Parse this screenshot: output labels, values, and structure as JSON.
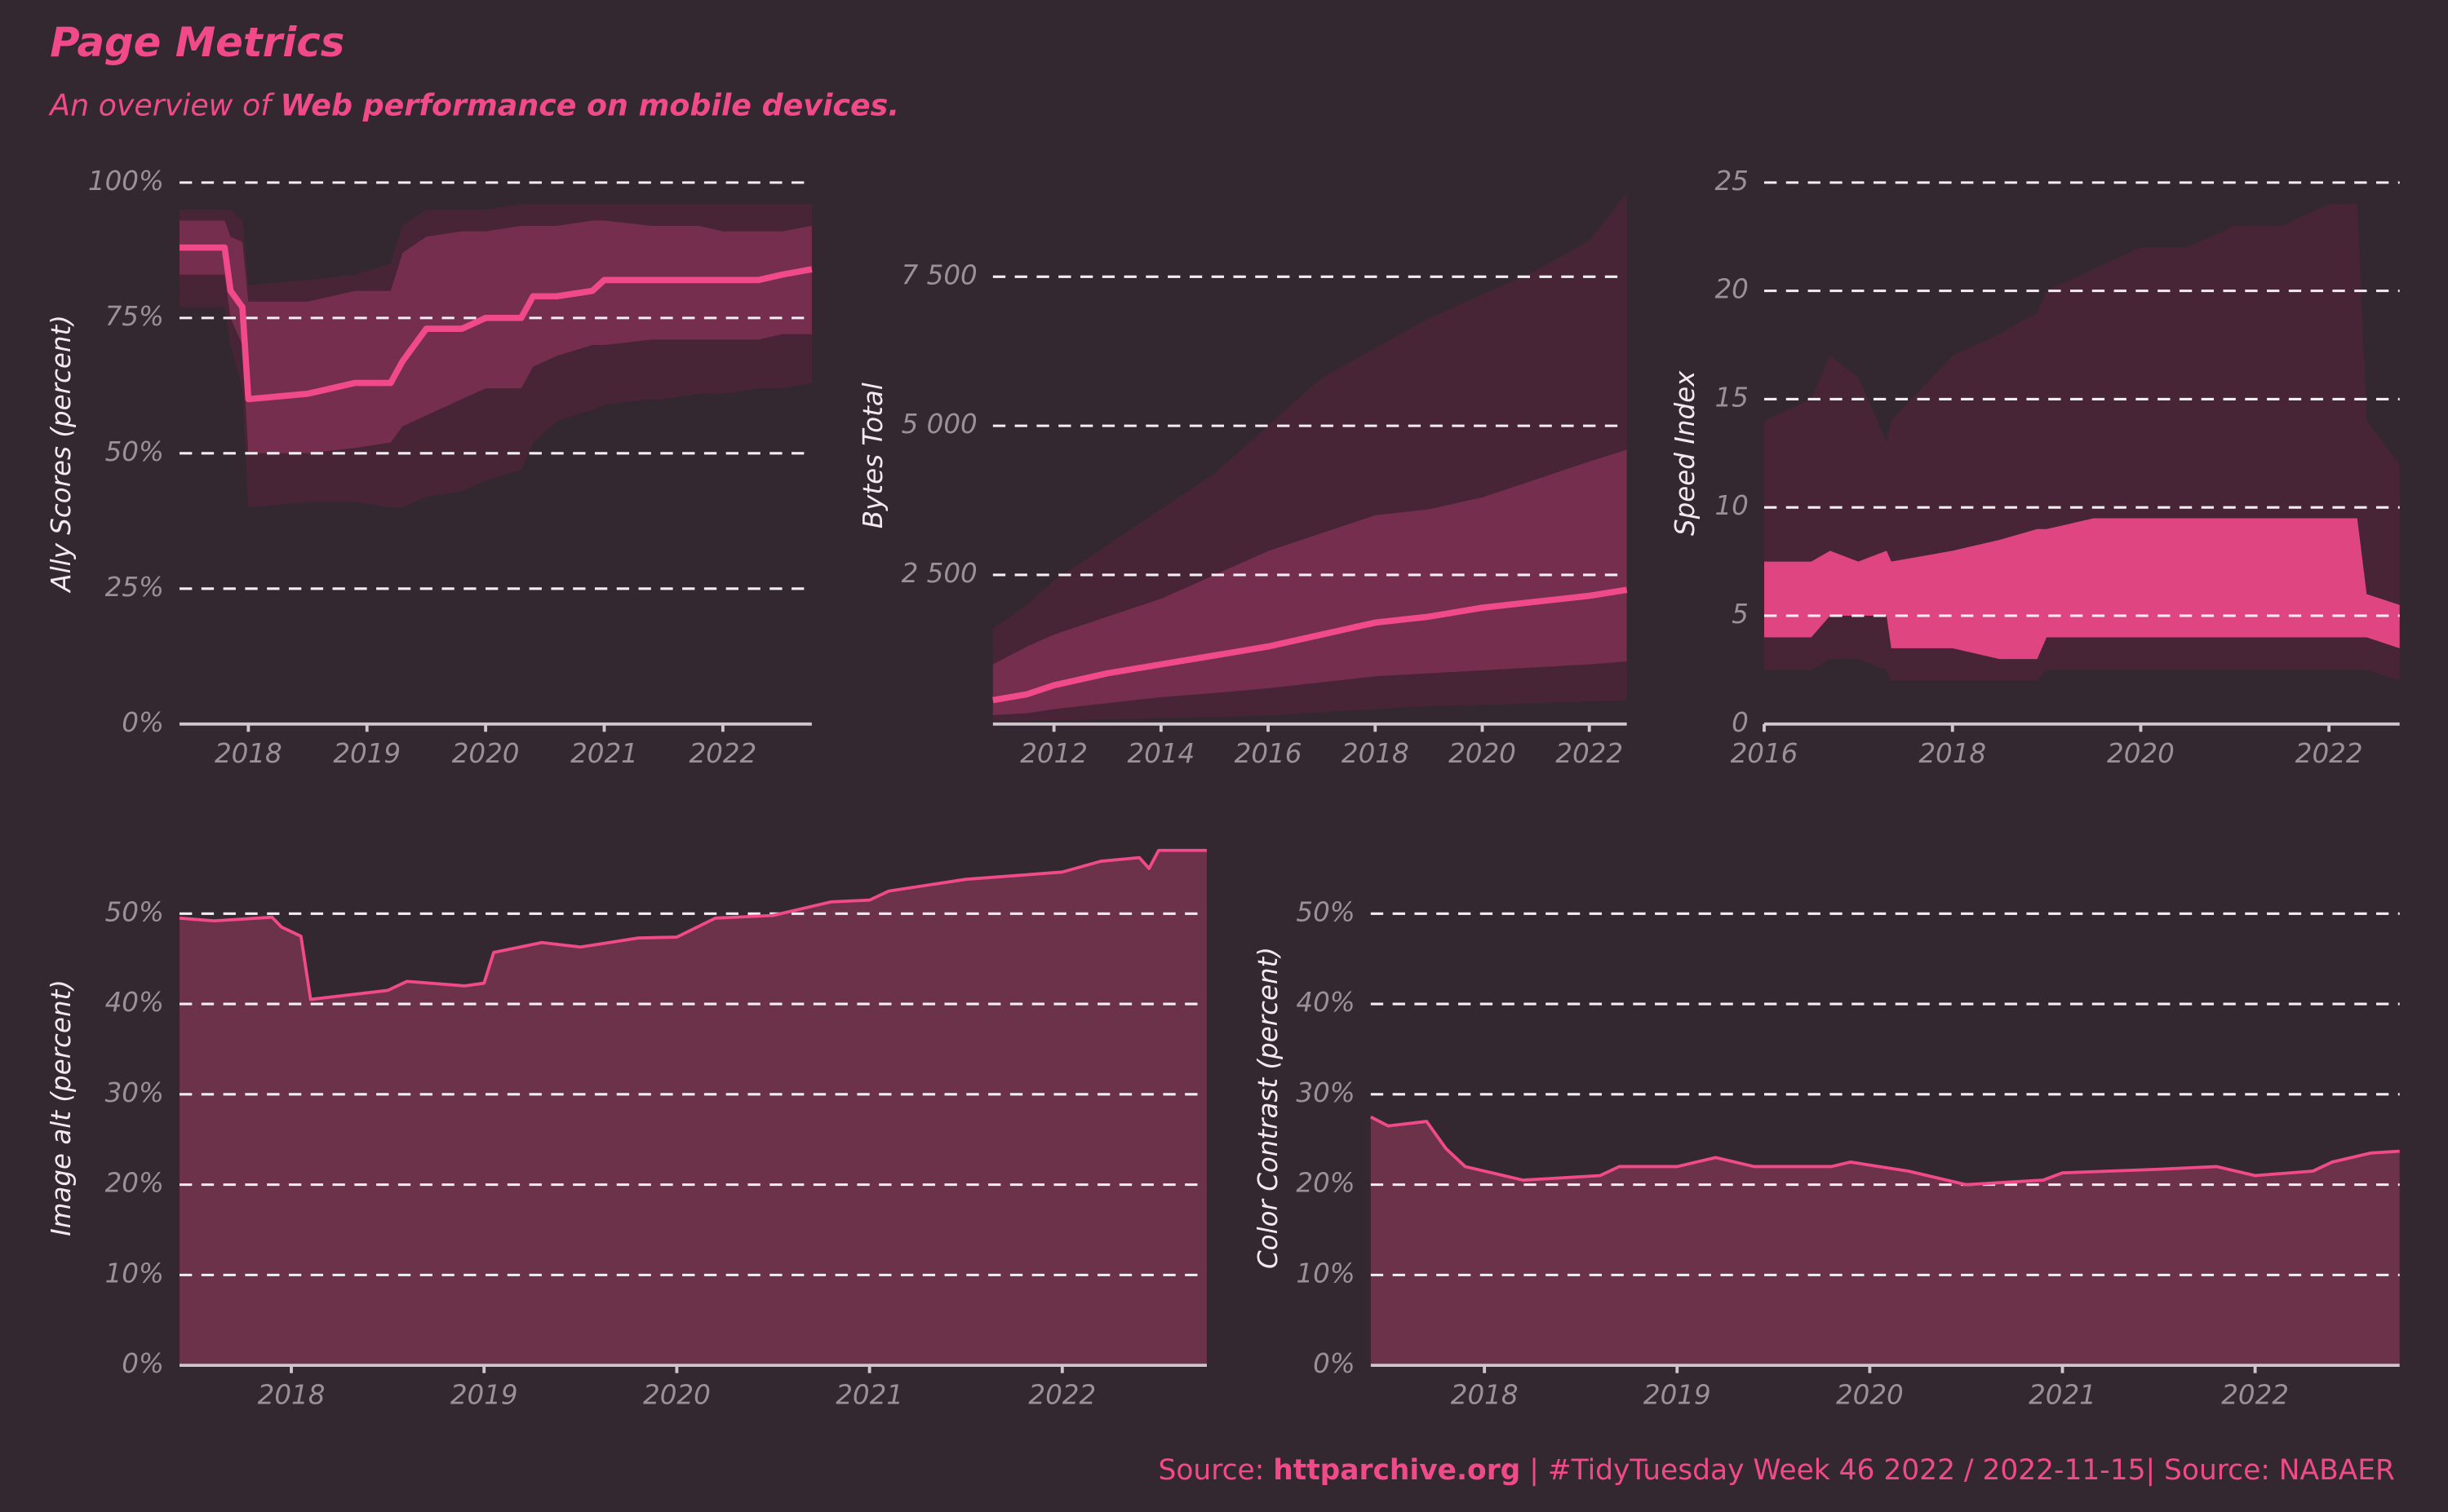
{
  "title": "Page Metrics",
  "subtitle": [
    "An overview of ",
    "Web performance on mobile devices."
  ],
  "caption": [
    "Source: ",
    "httparchive.org",
    " | #TidyTuesday Week 46 2022 / 2022-11-15| Source: NABAER"
  ],
  "chart_data": [
    {
      "type": "line",
      "ylabel": "Ally Scores (percent)",
      "x": [
        2017.42,
        2017.8,
        2017.85,
        2017.95,
        2018.0,
        2018.5,
        2018.9,
        2019.2,
        2019.3,
        2019.5,
        2019.8,
        2020.0,
        2020.3,
        2020.4,
        2020.6,
        2020.9,
        2021.0,
        2021.4,
        2021.5,
        2021.8,
        2022.0,
        2022.3,
        2022.5,
        2022.75
      ],
      "bands": [
        {
          "color": "#4a2537",
          "low": [
            77,
            77,
            70,
            62,
            40,
            41,
            41,
            40,
            40,
            42,
            43,
            45,
            47,
            52,
            56,
            58,
            59,
            60,
            60,
            61,
            61,
            62,
            62,
            63
          ],
          "high": [
            95,
            95,
            95,
            93,
            81,
            82,
            83,
            85,
            92,
            95,
            95,
            95,
            96,
            96,
            96,
            96,
            96,
            96,
            96,
            96,
            96,
            96,
            96,
            96
          ]
        },
        {
          "color": "#7a3050",
          "low": [
            83,
            83,
            75,
            70,
            50,
            50,
            51,
            52,
            55,
            57,
            60,
            62,
            62,
            66,
            68,
            70,
            70,
            71,
            71,
            71,
            71,
            71,
            72,
            72
          ],
          "high": [
            93,
            93,
            90,
            89,
            78,
            78,
            80,
            80,
            87,
            90,
            91,
            91,
            92,
            92,
            92,
            93,
            93,
            92,
            92,
            92,
            91,
            91,
            91,
            92
          ]
        }
      ],
      "series": [
        {
          "color": "#f04a8a",
          "values": [
            88,
            88,
            80,
            77,
            60,
            61,
            63,
            63,
            67,
            73,
            73,
            75,
            75,
            79,
            79,
            80,
            82,
            82,
            82,
            82,
            82,
            82,
            83,
            84
          ]
        }
      ],
      "xlim": [
        2017.42,
        2022.75
      ],
      "xticks": [
        2018,
        2019,
        2020,
        2021,
        2022
      ],
      "ylim": [
        0,
        100
      ],
      "yticks": [
        {
          "value": 0,
          "label": "0%"
        },
        {
          "value": 25,
          "label": "25%"
        },
        {
          "value": 50,
          "label": "50%"
        },
        {
          "value": 75,
          "label": "75%"
        },
        {
          "value": 100,
          "label": "100%"
        }
      ],
      "grid": true
    },
    {
      "type": "line",
      "ylabel": "Bytes Total",
      "x": [
        2010.86,
        2011.5,
        2012,
        2013,
        2014,
        2015,
        2016,
        2017,
        2018,
        2019,
        2020,
        2021,
        2022,
        2022.7
      ],
      "bands": [
        {
          "color": "#4a2537",
          "low": [
            50,
            50,
            60,
            80,
            100,
            120,
            140,
            200,
            250,
            300,
            320,
            350,
            380,
            400
          ],
          "high": [
            1600,
            2000,
            2400,
            3000,
            3600,
            4200,
            5000,
            5800,
            6300,
            6800,
            7200,
            7600,
            8100,
            8900
          ]
        },
        {
          "color": "#7a3050",
          "low": [
            150,
            180,
            250,
            350,
            450,
            520,
            600,
            700,
            800,
            850,
            900,
            950,
            1000,
            1050
          ],
          "high": [
            1000,
            1300,
            1500,
            1800,
            2100,
            2500,
            2900,
            3200,
            3500,
            3600,
            3800,
            4100,
            4400,
            4600
          ]
        }
      ],
      "series": [
        {
          "color": "#f04a8a",
          "values": [
            400,
            500,
            650,
            850,
            1000,
            1150,
            1300,
            1500,
            1700,
            1800,
            1950,
            2050,
            2150,
            2250
          ]
        }
      ],
      "xlim": [
        2010.86,
        2022.7
      ],
      "xticks": [
        2012,
        2014,
        2016,
        2018,
        2020,
        2022
      ],
      "ylim": [
        0,
        9000
      ],
      "yticks": [
        {
          "value": 2500,
          "label": "2 500"
        },
        {
          "value": 5000,
          "label": "5 000"
        },
        {
          "value": 7500,
          "label": "7 500"
        }
      ],
      "grid": true
    },
    {
      "type": "line",
      "ylabel": "Speed Index",
      "x": [
        2016,
        2016.5,
        2016.7,
        2017,
        2017.3,
        2017.35,
        2018,
        2018.5,
        2018.9,
        2019,
        2019.5,
        2020,
        2020.5,
        2021,
        2021.5,
        2022,
        2022.3,
        2022.4,
        2022.75
      ],
      "bands": [
        {
          "color": "#4a2537",
          "low": [
            2.5,
            2.5,
            3,
            3,
            2.5,
            2,
            2,
            2,
            2,
            2.5,
            2.5,
            2.5,
            2.5,
            2.5,
            2.5,
            2.5,
            2.5,
            2.5,
            2
          ],
          "high": [
            14,
            15,
            17,
            16,
            13,
            14,
            17,
            18,
            19,
            20,
            21,
            22,
            22,
            23,
            23,
            24,
            24,
            14,
            12
          ]
        },
        {
          "color": "#f04a8a",
          "low": [
            4,
            4,
            5,
            5,
            5,
            3.5,
            3.5,
            3,
            3,
            4,
            4,
            4,
            4,
            4,
            4,
            4,
            4,
            4,
            3.5
          ],
          "high": [
            7.5,
            7.5,
            8,
            7.5,
            8,
            7.5,
            8,
            8.5,
            9,
            9,
            9.5,
            9.5,
            9.5,
            9.5,
            9.5,
            9.5,
            9.5,
            6,
            5.5
          ]
        }
      ],
      "xlim": [
        2016,
        2022.75
      ],
      "xticks": [
        2016,
        2018,
        2020,
        2022
      ],
      "ylim": [
        0,
        25
      ],
      "yticks": [
        0,
        5,
        10,
        15,
        20,
        25
      ],
      "grid": true
    },
    {
      "type": "area",
      "ylabel": "Image alt (percent)",
      "x": [
        2017.42,
        2017.6,
        2017.9,
        2017.95,
        2018.05,
        2018.1,
        2018.5,
        2018.6,
        2018.9,
        2019.0,
        2019.05,
        2019.3,
        2019.5,
        2019.8,
        2020.0,
        2020.2,
        2020.5,
        2020.8,
        2021.0,
        2021.1,
        2021.5,
        2022.0,
        2022.2,
        2022.4,
        2022.45,
        2022.5,
        2022.75
      ],
      "series": [
        {
          "color": "#f04a8a",
          "fill": "#6b3249",
          "values": [
            49.5,
            49.2,
            49.6,
            48.5,
            47.5,
            40.5,
            41.5,
            42.5,
            42,
            42.3,
            45.7,
            46.8,
            46.3,
            47.3,
            47.4,
            49.5,
            49.8,
            51.3,
            51.5,
            52.5,
            53.8,
            54.6,
            55.8,
            56.2,
            55,
            57,
            57
          ]
        }
      ],
      "xlim": [
        2017.42,
        2022.75
      ],
      "xticks": [
        2018,
        2019,
        2020,
        2021,
        2022
      ],
      "ylim": [
        0,
        57
      ],
      "yticks": [
        {
          "value": 0,
          "label": "0%"
        },
        {
          "value": 10,
          "label": "10%"
        },
        {
          "value": 20,
          "label": "20%"
        },
        {
          "value": 30,
          "label": "30%"
        },
        {
          "value": 40,
          "label": "40%"
        },
        {
          "value": 50,
          "label": "50%"
        }
      ],
      "grid": true
    },
    {
      "type": "area",
      "ylabel": "Color Contrast (percent)",
      "x": [
        2017.41,
        2017.5,
        2017.7,
        2017.8,
        2017.9,
        2018.1,
        2018.2,
        2018.6,
        2018.7,
        2019.0,
        2019.2,
        2019.4,
        2019.8,
        2019.9,
        2020.2,
        2020.5,
        2020.9,
        2021.0,
        2021.5,
        2021.8,
        2022.0,
        2022.3,
        2022.4,
        2022.6,
        2022.75
      ],
      "series": [
        {
          "color": "#f04a8a",
          "fill": "#6b3249",
          "values": [
            27.5,
            26.5,
            27,
            24,
            22,
            21,
            20.5,
            21,
            22,
            22,
            23,
            22,
            22,
            22.5,
            21.5,
            20,
            20.5,
            21.3,
            21.7,
            22,
            21,
            21.5,
            22.5,
            23.5,
            23.7
          ]
        }
      ],
      "xlim": [
        2017.41,
        2022.75
      ],
      "xticks": [
        2018,
        2019,
        2020,
        2021,
        2022
      ],
      "ylim": [
        0,
        57
      ],
      "yticks": [
        {
          "value": 0,
          "label": "0%"
        },
        {
          "value": 10,
          "label": "10%"
        },
        {
          "value": 20,
          "label": "20%"
        },
        {
          "value": 30,
          "label": "30%"
        },
        {
          "value": 40,
          "label": "40%"
        },
        {
          "value": 50,
          "label": "50%"
        }
      ],
      "grid": true
    }
  ]
}
